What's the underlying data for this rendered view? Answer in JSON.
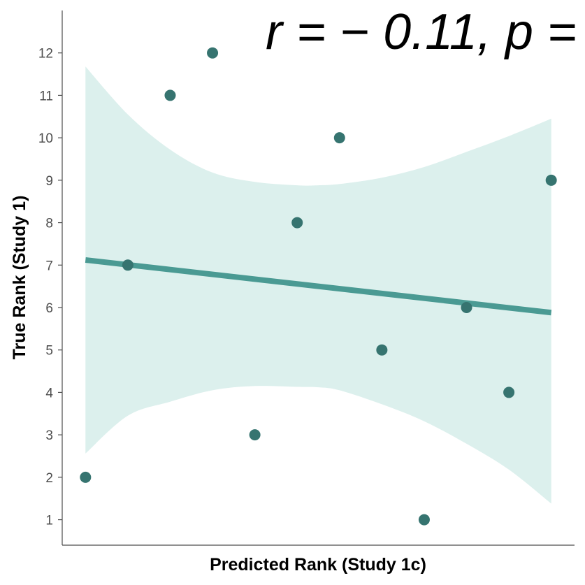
{
  "chart_data": {
    "type": "scatter",
    "title": "",
    "xlabel": "Predicted Rank (Study 1c)",
    "ylabel": "True Rank (Study 1)",
    "annotation": "r = − 0.11, p =",
    "x": [
      1,
      2,
      3,
      4,
      5,
      6,
      7,
      8,
      9,
      10,
      11,
      12
    ],
    "y": [
      2,
      7,
      11,
      12,
      3,
      8,
      10,
      5,
      1,
      6,
      4,
      9
    ],
    "xlim": [
      0.45,
      12.55
    ],
    "ylim": [
      0.4,
      13.0
    ],
    "yticks": [
      1,
      2,
      3,
      4,
      5,
      6,
      7,
      8,
      9,
      10,
      11,
      12
    ],
    "xticks": [],
    "fit_line": {
      "x": [
        1,
        12
      ],
      "y": [
        7.12,
        5.88
      ]
    },
    "confidence_band": {
      "x": [
        1,
        2,
        3,
        4,
        5,
        6,
        6.5,
        7,
        8,
        9,
        10,
        11,
        12
      ],
      "upper": [
        11.68,
        10.55,
        9.72,
        9.18,
        8.96,
        8.88,
        8.88,
        8.91,
        9.06,
        9.31,
        9.67,
        10.04,
        10.45
      ],
      "lower": [
        2.56,
        3.45,
        3.78,
        4.05,
        4.15,
        4.13,
        4.12,
        4.05,
        3.72,
        3.32,
        2.79,
        2.18,
        1.38
      ]
    },
    "grid": false,
    "legend": "none",
    "colors": {
      "point": "#367470",
      "line": "#4a9a93",
      "band": "#dcf0ed"
    }
  }
}
